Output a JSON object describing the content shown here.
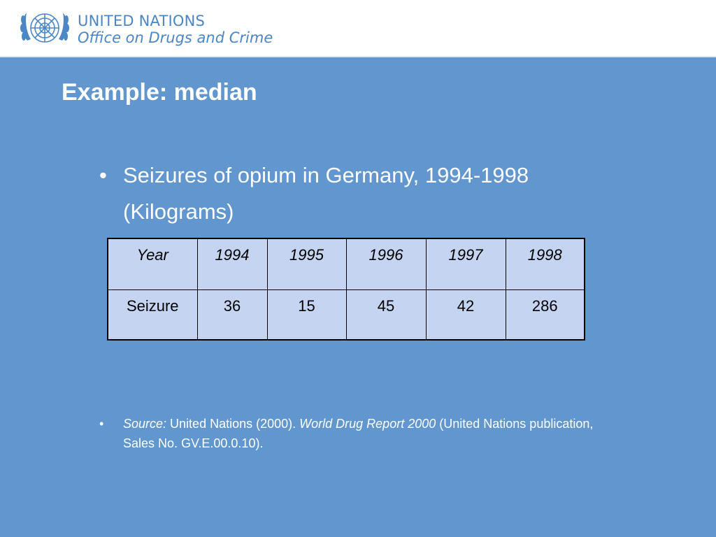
{
  "header": {
    "org_line1": "UNITED NATIONS",
    "org_line2": "Office on Drugs and Crime",
    "emblem_icon": "un-emblem-icon"
  },
  "slide": {
    "title": "Example: median",
    "bullet1_line1": "Seizures of opium in Germany, 1994-1998",
    "bullet1_line2": "(Kilograms)",
    "table": {
      "header": [
        "Year",
        "1994",
        "1995",
        "1996",
        "1997",
        "1998"
      ],
      "row": [
        "Seizure",
        "36",
        "15",
        "45",
        "42",
        "286"
      ]
    },
    "source": {
      "label": "Source:",
      "text1": " United Nations (2000). ",
      "title": "World Drug Report 2000",
      "text2": " (United Nations publication,",
      "line2": "Sales No. GV.E.00.0.10)."
    }
  },
  "colors": {
    "background": "#6196cf",
    "table_fill": "#c5d5f1",
    "header_text": "#4b86c5"
  }
}
